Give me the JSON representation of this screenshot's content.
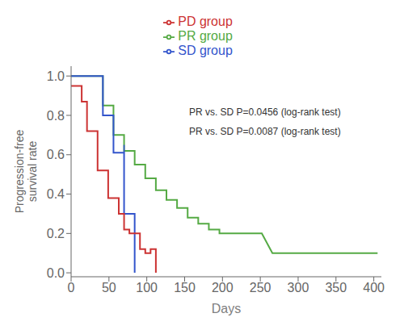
{
  "chart_data": {
    "type": "line",
    "xlabel": "Days",
    "ylabel": "Progression-free\nsurvival rate",
    "xlim": [
      0,
      410
    ],
    "ylim": [
      -0.02,
      1.05
    ],
    "xticks": [
      0,
      50,
      100,
      150,
      200,
      250,
      300,
      350,
      400
    ],
    "yticks": [
      {
        "value": 0.0,
        "label": "0.0"
      },
      {
        "value": 0.2,
        "label": "0.2"
      },
      {
        "value": 0.4,
        "label": "0.4"
      },
      {
        "value": 0.6,
        "label": "0.6"
      },
      {
        "value": 0.8,
        "label": "0.8"
      },
      {
        "value": 1.0,
        "label": "1.0"
      }
    ],
    "grid": false,
    "legend": "top",
    "annotations": [
      "PR vs. SD P=0.0456 (log-rank test)",
      "PR vs. SD P=0.0087 (log-rank test)"
    ],
    "series": [
      {
        "name": "PR group",
        "color": "#55aa44",
        "x": [
          0,
          42,
          42,
          56,
          56,
          70,
          70,
          84,
          84,
          98,
          98,
          112,
          112,
          126,
          126,
          140,
          140,
          154,
          154,
          168,
          168,
          182,
          182,
          196,
          196,
          210,
          210,
          224,
          224,
          252,
          252,
          266,
          266,
          280,
          280,
          350,
          350,
          405
        ],
        "values": [
          1.0,
          1.0,
          0.85,
          0.85,
          0.7,
          0.7,
          0.62,
          0.62,
          0.55,
          0.55,
          0.48,
          0.48,
          0.42,
          0.42,
          0.37,
          0.37,
          0.33,
          0.33,
          0.28,
          0.28,
          0.25,
          0.25,
          0.22,
          0.22,
          0.2,
          0.2,
          0.2,
          0.2,
          0.2,
          0.2,
          0.2,
          0.1,
          0.1,
          0.1,
          0.1,
          0.1,
          0.1,
          0.1
        ]
      },
      {
        "name": "SD group",
        "color": "#3355cc",
        "x": [
          0,
          42,
          42,
          56,
          56,
          70,
          70,
          84,
          84
        ],
        "values": [
          1.0,
          1.0,
          0.8,
          0.8,
          0.61,
          0.61,
          0.3,
          0.3,
          0.0
        ],
        "censor_x": [
          70
        ],
        "censor_y_low": [
          0.61
        ],
        "censor_y_high": [
          0.65
        ]
      },
      {
        "name": "PD group",
        "color": "#cc3333",
        "x": [
          0,
          14,
          14,
          21,
          21,
          35,
          35,
          49,
          49,
          63,
          63,
          70,
          70,
          77,
          77,
          91,
          91,
          98,
          98,
          105,
          105,
          112,
          112
        ],
        "values": [
          0.95,
          0.95,
          0.87,
          0.87,
          0.72,
          0.72,
          0.52,
          0.52,
          0.38,
          0.38,
          0.3,
          0.3,
          0.22,
          0.22,
          0.2,
          0.2,
          0.12,
          0.12,
          0.1,
          0.1,
          0.12,
          0.12,
          0.0
        ]
      }
    ]
  }
}
